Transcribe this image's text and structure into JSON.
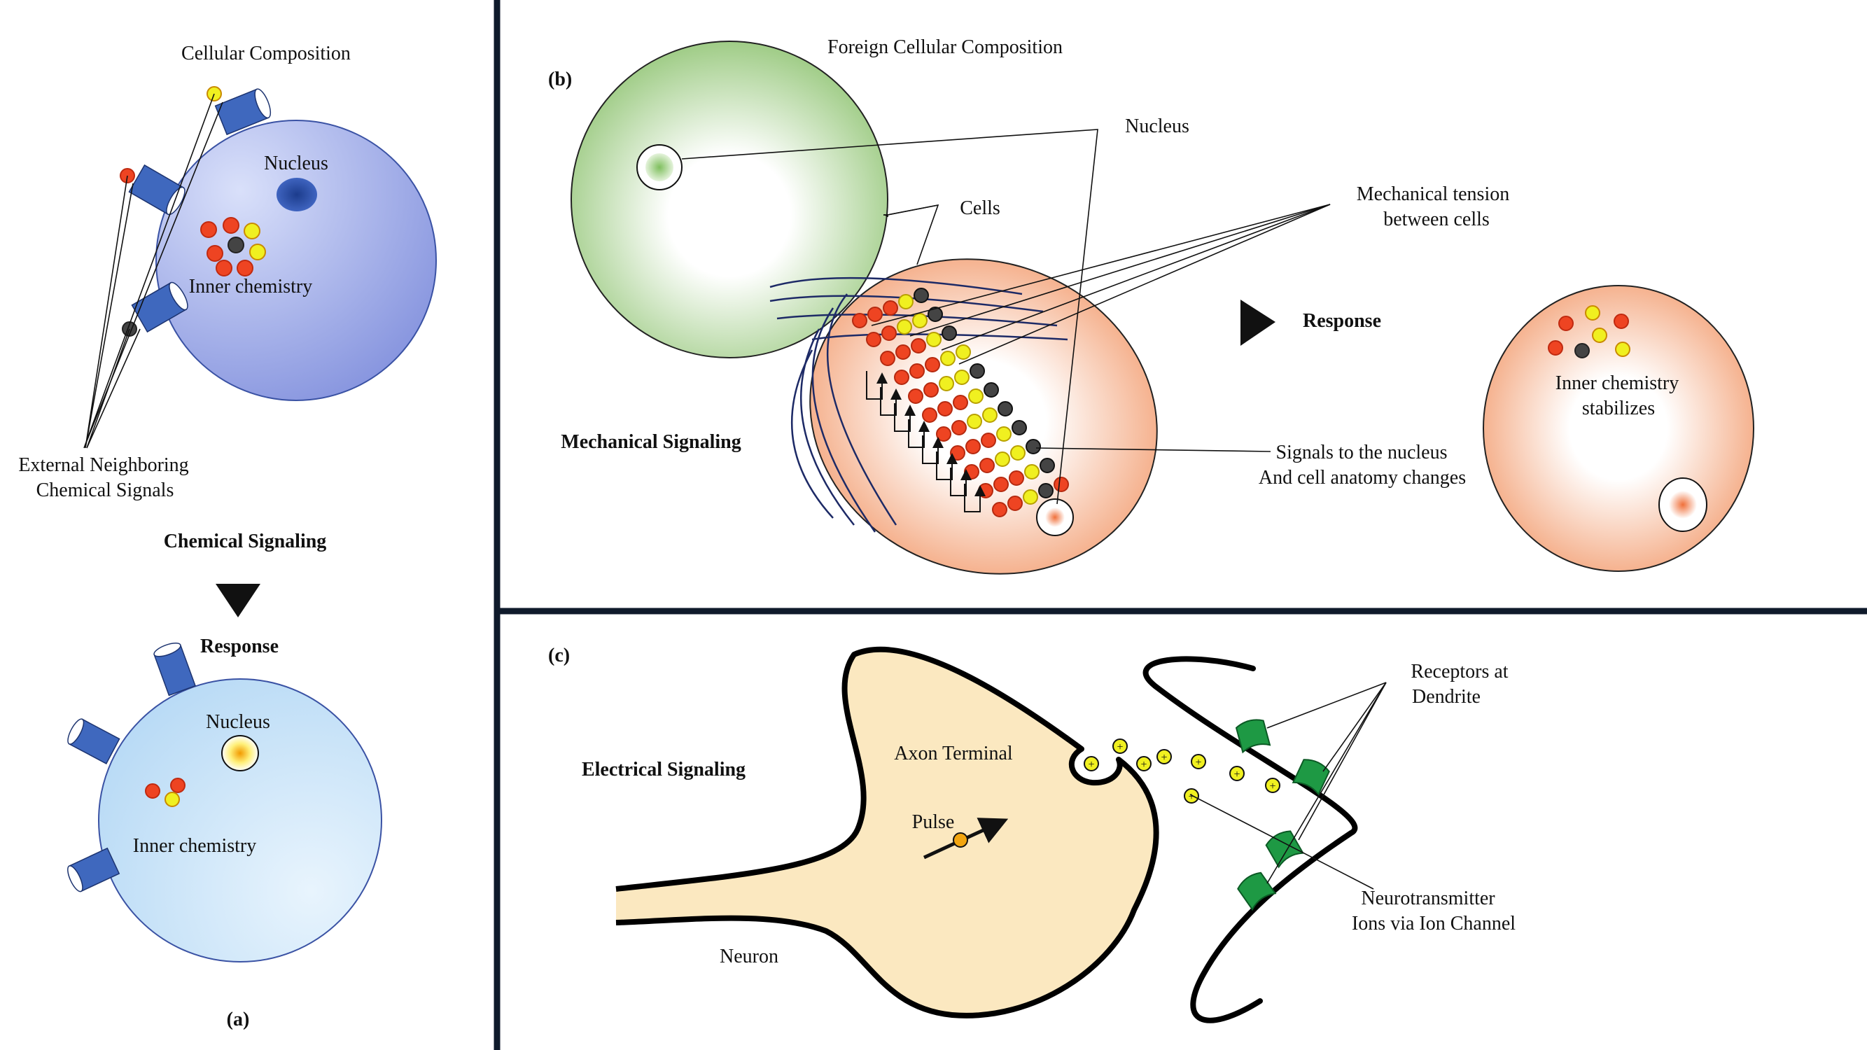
{
  "panel_a": {
    "letter": "(a)",
    "cellular_composition": "Cellular Composition",
    "nucleus": "Nucleus",
    "inner_chemistry": "Inner chemistry",
    "external_line1": "External Neighboring",
    "external_line2": "Chemical Signals",
    "chemical_signaling": "Chemical Signaling",
    "response": "Response",
    "nucleus_2": "Nucleus",
    "inner_chemistry_2": "Inner chemistry"
  },
  "panel_b": {
    "letter": "(b)",
    "foreign_cellular_composition": "Foreign Cellular Composition",
    "nucleus": "Nucleus",
    "cells": "Cells",
    "tension_line1": "Mechanical tension",
    "tension_line2": "between cells",
    "response": "Response",
    "mechanical_signaling": "Mechanical Signaling",
    "signals_line1": "Signals to the nucleus",
    "signals_line2": "And cell anatomy changes",
    "stabilizes_line1": "Inner chemistry",
    "stabilizes_line2": "stabilizes"
  },
  "panel_c": {
    "letter": "(c)",
    "electrical_signaling": "Electrical Signaling",
    "axon_terminal": "Axon Terminal",
    "pulse": "Pulse",
    "neuron": "Neuron",
    "receptors_line1": "Receptors at",
    "receptors_line2": "Dendrite",
    "neuro_line1": "Neurotransmitter",
    "neuro_line2": "Ions via Ion Channel",
    "ion_symbol": "+"
  },
  "colors": {
    "panel_border": "#0f1a2b",
    "cell_blue_dark": "#8a98df",
    "cell_blue_light": "#d3dbf8",
    "cell_light_blue": "#bfe0f8",
    "receptor_blue": "#3f68be",
    "green_cell": "#a6cf8f",
    "orange_cell": "#f2a57a",
    "red_particle": "#ee4422",
    "yellow_particle": "#f0f020",
    "gray_particle": "#444444",
    "axon_fill": "#fbe8c0",
    "receptor_green": "#1e9944"
  }
}
